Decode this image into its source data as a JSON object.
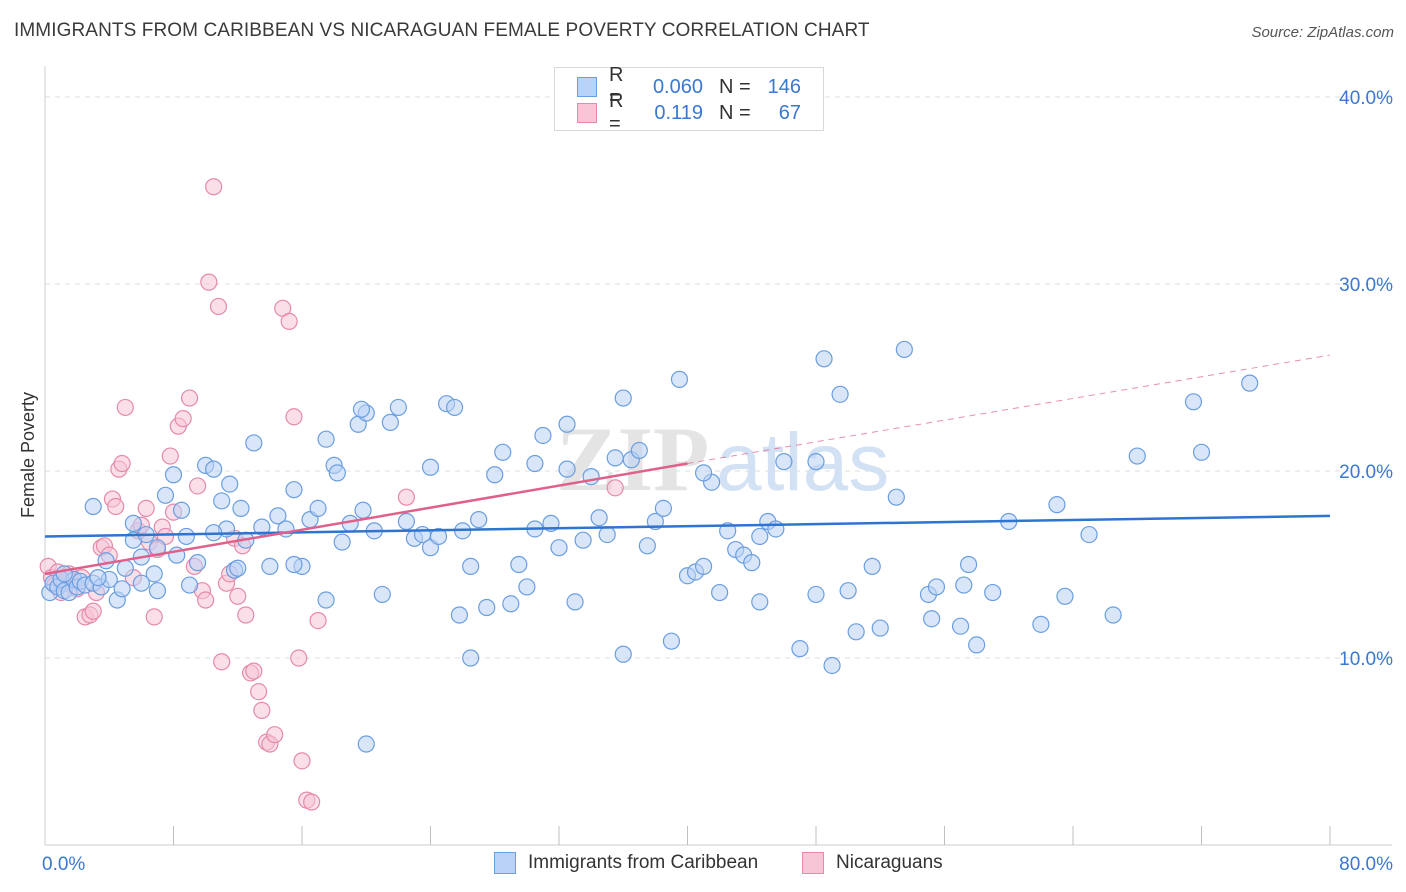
{
  "title": "IMMIGRANTS FROM CARIBBEAN VS NICARAGUAN FEMALE POVERTY CORRELATION CHART",
  "source": "Source: ZipAtlas.com",
  "watermark": {
    "zip": "ZIP",
    "atlas": "atlas"
  },
  "legend": {
    "rows": [
      {
        "r_label": "R =",
        "r_value": "0.060",
        "n_label": "N =",
        "n_value": "146"
      },
      {
        "r_label": "R =",
        "r_value": "0.119",
        "n_label": "N =",
        "n_value": "67"
      }
    ]
  },
  "colors": {
    "blue_fill": "#b9d2f5",
    "blue_stroke": "#6a9ee0",
    "blue_line": "#2e74d0",
    "pink_fill": "#f8c5d6",
    "pink_stroke": "#e58aab",
    "pink_line": "#e0608a",
    "tick_text": "#3a78d1",
    "grid": "#dcdcdc"
  },
  "chart_data": {
    "type": "scatter",
    "title": "IMMIGRANTS FROM CARIBBEAN VS NICARAGUAN FEMALE POVERTY CORRELATION CHART",
    "xlabel": "",
    "ylabel": "Female Poverty",
    "xlim": [
      0,
      80
    ],
    "ylim": [
      0,
      40
    ],
    "x_tick_labels": [
      "0.0%",
      "80.0%"
    ],
    "y_ticks": [
      10,
      20,
      30,
      40
    ],
    "y_tick_labels": [
      "10.0%",
      "20.0%",
      "30.0%",
      "40.0%"
    ],
    "grid": true,
    "legend_position": "top-center",
    "series": [
      {
        "name": "Immigrants from Caribbean",
        "color": "#6a9ee0",
        "trend": {
          "x0": 0,
          "y0": 16.5,
          "x1": 80,
          "y1": 17.6
        },
        "points": [
          [
            0.3,
            13.5
          ],
          [
            0.5,
            14.0
          ],
          [
            0.8,
            13.8
          ],
          [
            1.0,
            14.2
          ],
          [
            1.2,
            13.6
          ],
          [
            1.5,
            13.5
          ],
          [
            1.8,
            14.2
          ],
          [
            2.0,
            13.8
          ],
          [
            2.2,
            14.1
          ],
          [
            2.5,
            13.9
          ],
          [
            3.0,
            14.0
          ],
          [
            3.5,
            13.8
          ],
          [
            4.0,
            14.2
          ],
          [
            1.2,
            14.5
          ],
          [
            3.0,
            18.1
          ],
          [
            3.8,
            15.2
          ],
          [
            4.5,
            13.1
          ],
          [
            5.0,
            14.8
          ],
          [
            5.5,
            16.3
          ],
          [
            6.0,
            15.4
          ],
          [
            6.3,
            16.6
          ],
          [
            6.8,
            14.5
          ],
          [
            7.0,
            15.9
          ],
          [
            7.5,
            18.7
          ],
          [
            8.0,
            19.8
          ],
          [
            8.2,
            15.5
          ],
          [
            8.5,
            17.9
          ],
          [
            8.8,
            16.5
          ],
          [
            9.5,
            15.1
          ],
          [
            10.0,
            20.3
          ],
          [
            10.5,
            20.1
          ],
          [
            11.0,
            18.4
          ],
          [
            11.3,
            16.9
          ],
          [
            11.5,
            19.3
          ],
          [
            11.8,
            14.7
          ],
          [
            12.2,
            18.0
          ],
          [
            12.5,
            16.3
          ],
          [
            13.0,
            21.5
          ],
          [
            13.5,
            17.0
          ],
          [
            14.0,
            14.9
          ],
          [
            14.5,
            17.6
          ],
          [
            15.0,
            16.9
          ],
          [
            15.5,
            19.0
          ],
          [
            16.0,
            14.9
          ],
          [
            16.5,
            17.4
          ],
          [
            17.0,
            18.0
          ],
          [
            17.5,
            21.7
          ],
          [
            17.5,
            13.1
          ],
          [
            18.0,
            20.3
          ],
          [
            18.2,
            19.9
          ],
          [
            18.5,
            16.2
          ],
          [
            19.0,
            17.2
          ],
          [
            19.5,
            22.5
          ],
          [
            19.8,
            17.9
          ],
          [
            20.0,
            23.1
          ],
          [
            20.5,
            16.8
          ],
          [
            21.0,
            13.4
          ],
          [
            21.5,
            22.6
          ],
          [
            22.0,
            23.4
          ],
          [
            22.5,
            17.3
          ],
          [
            23.0,
            16.4
          ],
          [
            23.5,
            16.6
          ],
          [
            24.0,
            15.9
          ],
          [
            24.5,
            16.5
          ],
          [
            25.0,
            23.6
          ],
          [
            25.5,
            23.4
          ],
          [
            26.0,
            16.8
          ],
          [
            26.5,
            14.9
          ],
          [
            27.0,
            17.4
          ],
          [
            27.5,
            12.7
          ],
          [
            28.0,
            19.8
          ],
          [
            28.5,
            21.0
          ],
          [
            29.0,
            12.9
          ],
          [
            29.5,
            15.0
          ],
          [
            30.0,
            13.8
          ],
          [
            30.5,
            16.9
          ],
          [
            31.0,
            21.9
          ],
          [
            31.5,
            17.2
          ],
          [
            32.0,
            15.9
          ],
          [
            32.5,
            22.5
          ],
          [
            33.0,
            13.0
          ],
          [
            33.5,
            16.3
          ],
          [
            34.0,
            19.7
          ],
          [
            34.5,
            17.5
          ],
          [
            35.0,
            16.6
          ],
          [
            35.5,
            20.7
          ],
          [
            36.0,
            23.9
          ],
          [
            36.5,
            20.6
          ],
          [
            37.0,
            21.1
          ],
          [
            37.5,
            16.0
          ],
          [
            38.0,
            17.3
          ],
          [
            38.5,
            18.0
          ],
          [
            39.0,
            10.9
          ],
          [
            39.5,
            24.9
          ],
          [
            40.0,
            14.4
          ],
          [
            40.5,
            14.6
          ],
          [
            41.0,
            14.9
          ],
          [
            41.5,
            19.4
          ],
          [
            42.0,
            13.5
          ],
          [
            42.5,
            16.8
          ],
          [
            43.0,
            15.8
          ],
          [
            43.5,
            15.5
          ],
          [
            44.0,
            15.1
          ],
          [
            44.5,
            13.0
          ],
          [
            45.0,
            17.3
          ],
          [
            45.5,
            16.9
          ],
          [
            46.0,
            20.5
          ],
          [
            47.0,
            10.5
          ],
          [
            48.0,
            20.5
          ],
          [
            48.0,
            13.4
          ],
          [
            48.5,
            26.0
          ],
          [
            49.0,
            9.6
          ],
          [
            49.5,
            24.1
          ],
          [
            50.0,
            13.6
          ],
          [
            50.5,
            11.4
          ],
          [
            51.5,
            14.9
          ],
          [
            52.0,
            11.6
          ],
          [
            53.0,
            18.6
          ],
          [
            53.5,
            26.5
          ],
          [
            55.0,
            13.4
          ],
          [
            55.2,
            12.1
          ],
          [
            55.5,
            13.8
          ],
          [
            57.0,
            11.7
          ],
          [
            57.2,
            13.9
          ],
          [
            57.5,
            15.0
          ],
          [
            58.0,
            10.7
          ],
          [
            59.0,
            13.5
          ],
          [
            60.0,
            17.3
          ],
          [
            62.0,
            11.8
          ],
          [
            63.0,
            18.2
          ],
          [
            63.5,
            13.3
          ],
          [
            65.0,
            16.6
          ],
          [
            66.5,
            12.3
          ],
          [
            68.0,
            20.8
          ],
          [
            71.5,
            23.7
          ],
          [
            72.0,
            21.0
          ],
          [
            75.0,
            24.7
          ],
          [
            25.8,
            12.3
          ],
          [
            12.0,
            14.8
          ],
          [
            9.0,
            13.9
          ],
          [
            20.0,
            5.4
          ],
          [
            36.0,
            10.2
          ],
          [
            26.5,
            10.0
          ],
          [
            24.0,
            20.2
          ],
          [
            6.0,
            14.0
          ],
          [
            7.0,
            13.6
          ],
          [
            15.5,
            15.0
          ],
          [
            10.5,
            16.7
          ],
          [
            3.3,
            14.3
          ],
          [
            4.8,
            13.7
          ],
          [
            41.0,
            19.9
          ],
          [
            44.5,
            16.5
          ],
          [
            5.5,
            17.2
          ],
          [
            32.5,
            20.1
          ],
          [
            19.7,
            23.3
          ],
          [
            30.5,
            20.4
          ]
        ]
      },
      {
        "name": "Nicaraguans",
        "color": "#e58aab",
        "trend": {
          "x0": 0,
          "y0": 14.5,
          "x1": 40,
          "y1": 20.4
        },
        "trend_dashed": {
          "x0": 40,
          "y0": 20.4,
          "x1": 80,
          "y1": 26.2
        },
        "points": [
          [
            0.2,
            14.9
          ],
          [
            0.4,
            14.3
          ],
          [
            0.6,
            13.9
          ],
          [
            0.8,
            14.6
          ],
          [
            1.0,
            13.5
          ],
          [
            1.2,
            14.0
          ],
          [
            1.5,
            14.5
          ],
          [
            1.8,
            14.1
          ],
          [
            2.0,
            13.7
          ],
          [
            2.3,
            14.3
          ],
          [
            2.5,
            12.2
          ],
          [
            2.8,
            12.3
          ],
          [
            3.0,
            12.5
          ],
          [
            3.2,
            13.5
          ],
          [
            3.5,
            15.9
          ],
          [
            3.7,
            16.0
          ],
          [
            4.0,
            15.5
          ],
          [
            4.2,
            18.5
          ],
          [
            4.4,
            18.1
          ],
          [
            4.6,
            20.1
          ],
          [
            4.8,
            20.4
          ],
          [
            5.0,
            23.4
          ],
          [
            5.5,
            14.3
          ],
          [
            5.8,
            16.8
          ],
          [
            6.0,
            17.1
          ],
          [
            6.3,
            18.0
          ],
          [
            6.5,
            16.2
          ],
          [
            6.8,
            12.2
          ],
          [
            7.0,
            15.8
          ],
          [
            7.3,
            17.0
          ],
          [
            7.5,
            16.5
          ],
          [
            7.8,
            20.8
          ],
          [
            8.0,
            17.8
          ],
          [
            8.3,
            22.4
          ],
          [
            8.6,
            22.8
          ],
          [
            9.0,
            23.9
          ],
          [
            9.3,
            14.9
          ],
          [
            9.5,
            19.2
          ],
          [
            9.8,
            13.6
          ],
          [
            10.0,
            13.1
          ],
          [
            10.2,
            30.1
          ],
          [
            10.5,
            35.2
          ],
          [
            10.8,
            28.8
          ],
          [
            11.0,
            9.8
          ],
          [
            11.3,
            14.0
          ],
          [
            11.5,
            14.5
          ],
          [
            11.8,
            16.4
          ],
          [
            12.0,
            13.3
          ],
          [
            12.3,
            16.0
          ],
          [
            12.5,
            12.3
          ],
          [
            12.8,
            9.2
          ],
          [
            13.0,
            9.3
          ],
          [
            13.3,
            8.2
          ],
          [
            13.5,
            7.2
          ],
          [
            13.8,
            5.5
          ],
          [
            14.0,
            5.4
          ],
          [
            14.3,
            5.9
          ],
          [
            14.8,
            28.7
          ],
          [
            15.2,
            28.0
          ],
          [
            15.5,
            22.9
          ],
          [
            15.8,
            10.0
          ],
          [
            16.0,
            4.5
          ],
          [
            16.3,
            2.4
          ],
          [
            16.6,
            2.3
          ],
          [
            22.5,
            18.6
          ],
          [
            35.5,
            19.1
          ],
          [
            17.0,
            12.0
          ]
        ]
      }
    ]
  },
  "bottom_legend": {
    "items": [
      {
        "label": "Immigrants from Caribbean"
      },
      {
        "label": "Nicaraguans"
      }
    ]
  }
}
